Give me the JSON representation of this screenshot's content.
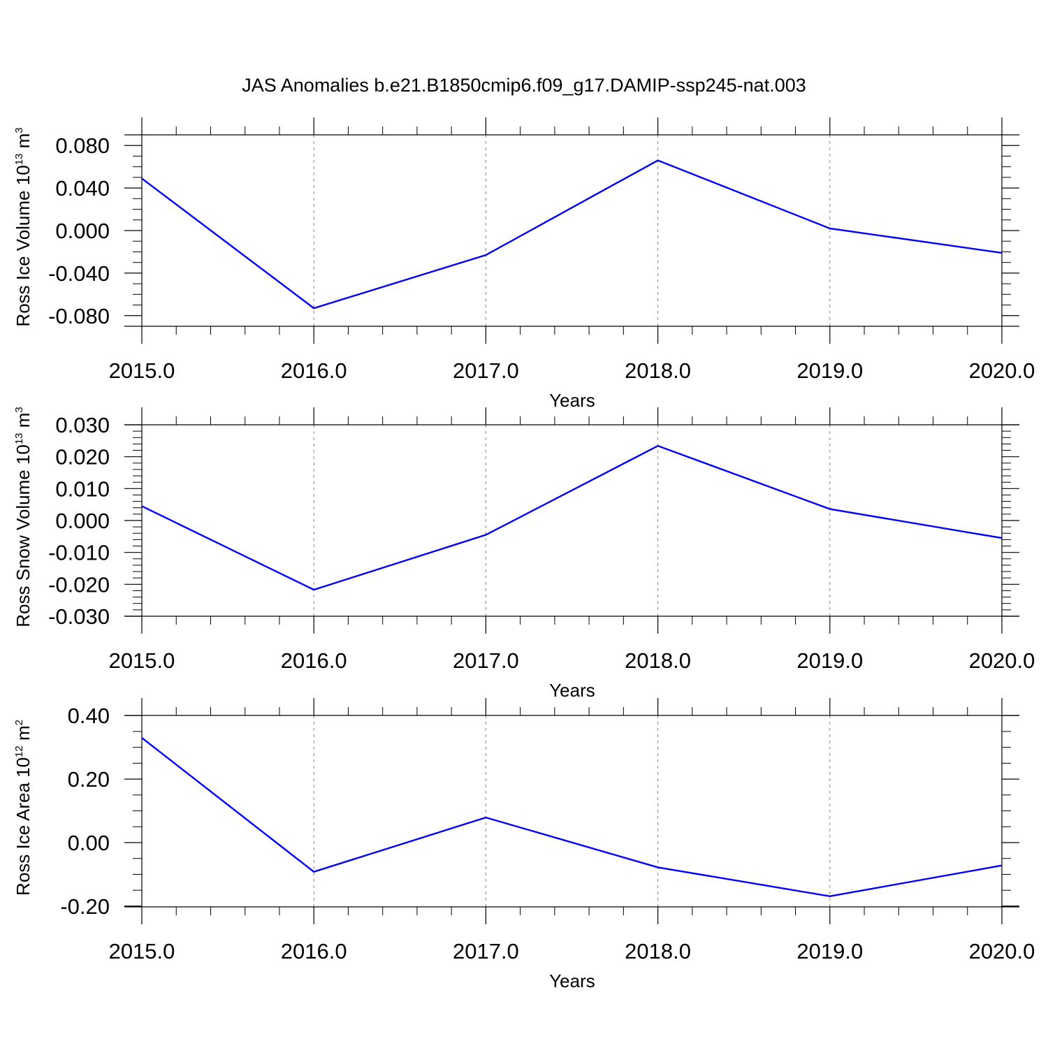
{
  "title": "JAS Anomalies b.e21.B1850cmip6.f09_g17.DAMIP-ssp245-nat.003",
  "colors": {
    "line": "#0000ff",
    "axis": "#000000",
    "grid": "#808080"
  },
  "chart_data": [
    {
      "type": "line",
      "ylabel": {
        "text": "Ross Ice Volume 10",
        "exponent": "13",
        "unit": " m",
        "unit_exponent": "3"
      },
      "xlabel": "Years",
      "x": [
        2015,
        2016,
        2017,
        2018,
        2019,
        2020
      ],
      "x_tick_labels": [
        "2015.0",
        "2016.0",
        "2017.0",
        "2018.0",
        "2019.0",
        "2020.0"
      ],
      "xlim": [
        2015,
        2020
      ],
      "ylim": [
        -0.09,
        0.09
      ],
      "y_ticks": [
        0.08,
        0.04,
        0.0,
        -0.04,
        -0.08
      ],
      "y_tick_labels": [
        "0.080",
        "0.040",
        "0.000",
        "-0.040",
        "-0.080"
      ],
      "y_minor_step": 0.01,
      "grid": "vertical dashed",
      "series": [
        {
          "values": [
            0.049,
            -0.073,
            -0.023,
            0.066,
            0.002,
            -0.021
          ]
        }
      ]
    },
    {
      "type": "line",
      "ylabel": {
        "text": "Ross Snow Volume 10",
        "exponent": "13",
        "unit": " m",
        "unit_exponent": "3"
      },
      "xlabel": "Years",
      "x": [
        2015,
        2016,
        2017,
        2018,
        2019,
        2020
      ],
      "x_tick_labels": [
        "2015.0",
        "2016.0",
        "2017.0",
        "2018.0",
        "2019.0",
        "2020.0"
      ],
      "xlim": [
        2015,
        2020
      ],
      "ylim": [
        -0.03,
        0.03
      ],
      "y_ticks": [
        0.03,
        0.02,
        0.01,
        0.0,
        -0.01,
        -0.02,
        -0.03
      ],
      "y_tick_labels": [
        "0.030",
        "0.020",
        "0.010",
        "0.000",
        "-0.010",
        "-0.020",
        "-0.030"
      ],
      "y_minor_step": 0.002,
      "grid": "vertical dashed",
      "series": [
        {
          "values": [
            0.0045,
            -0.0217,
            -0.0045,
            0.0234,
            0.0036,
            -0.0055
          ]
        }
      ]
    },
    {
      "type": "line",
      "ylabel": {
        "text": "Ross Ice Area 10",
        "exponent": "12",
        "unit": " m",
        "unit_exponent": "2"
      },
      "xlabel": "Years",
      "x": [
        2015,
        2016,
        2017,
        2018,
        2019,
        2020
      ],
      "x_tick_labels": [
        "2015.0",
        "2016.0",
        "2017.0",
        "2018.0",
        "2019.0",
        "2020.0"
      ],
      "xlim": [
        2015,
        2020
      ],
      "ylim": [
        -0.2,
        0.4
      ],
      "y_ticks": [
        0.4,
        0.2,
        0.0,
        -0.2
      ],
      "y_tick_labels": [
        "0.40",
        "0.20",
        "0.00",
        "-0.20"
      ],
      "y_minor_step": 0.05,
      "grid": "vertical dashed",
      "series": [
        {
          "values": [
            0.33,
            -0.092,
            0.079,
            -0.078,
            -0.169,
            -0.072
          ]
        }
      ]
    }
  ]
}
